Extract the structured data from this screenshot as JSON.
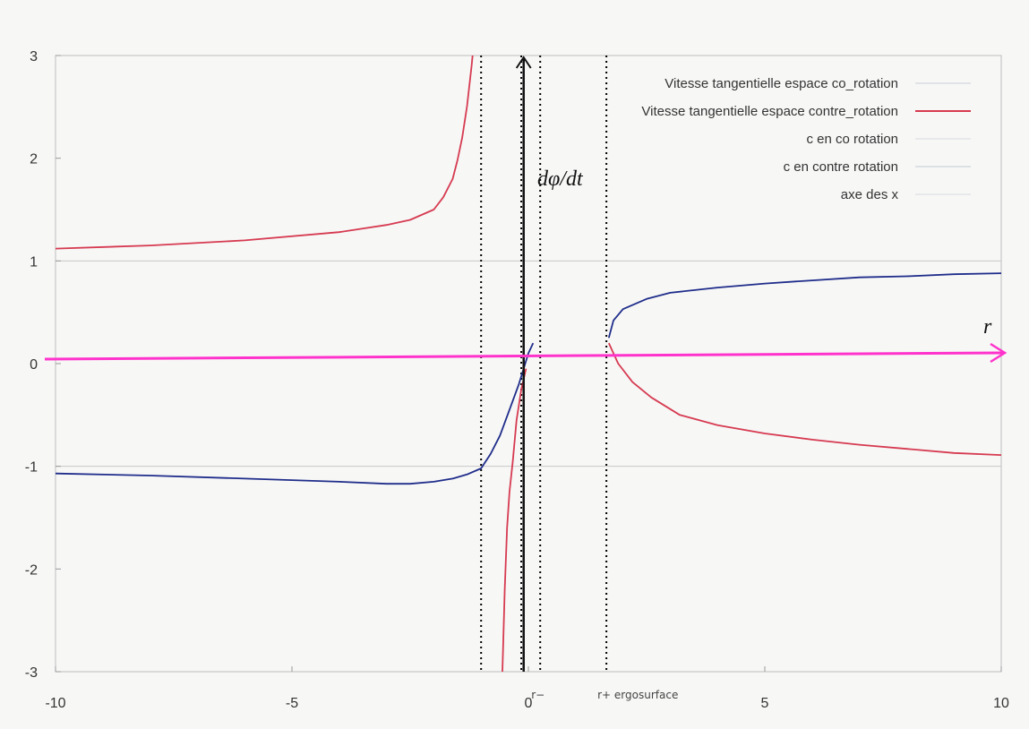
{
  "chart_data": {
    "type": "line",
    "xlim": [
      -10,
      10
    ],
    "ylim": [
      -3,
      3
    ],
    "x_ticks": [
      "-10",
      "-5",
      "0",
      "5",
      "10"
    ],
    "y_ticks": [
      "-3",
      "-2",
      "-1",
      "0",
      "1",
      "2",
      "3"
    ],
    "grid": "horizontal lines at y = -1 and y = 1",
    "legend_position": "top-right",
    "legend": [
      {
        "label": "Vitesse tangentielle espace co_rotation",
        "color": "#c9ced6"
      },
      {
        "label": "Vitesse tangentielle espace contre_rotation",
        "color": "#d63a50"
      },
      {
        "label": "c en co rotation",
        "color": "#d6d9de"
      },
      {
        "label": "c en contre rotation",
        "color": "#c2c8d0"
      },
      {
        "label": "axe des x",
        "color": "#d6d9de"
      }
    ],
    "series": [
      {
        "name": "Vitesse tangentielle espace contre_rotation",
        "color": "#d63a50",
        "segments": [
          [
            [
              -10,
              1.12
            ],
            [
              -8,
              1.15
            ],
            [
              -6,
              1.2
            ],
            [
              -4,
              1.28
            ],
            [
              -3,
              1.35
            ],
            [
              -2.5,
              1.4
            ],
            [
              -2,
              1.5
            ],
            [
              -1.8,
              1.62
            ],
            [
              -1.6,
              1.8
            ],
            [
              -1.5,
              1.98
            ],
            [
              -1.4,
              2.2
            ],
            [
              -1.3,
              2.5
            ],
            [
              -1.2,
              2.9
            ],
            [
              -1.18,
              3.0
            ]
          ],
          [
            [
              -0.55,
              -3.0
            ],
            [
              -0.5,
              -2.2
            ],
            [
              -0.45,
              -1.6
            ],
            [
              -0.4,
              -1.25
            ],
            [
              -0.33,
              -0.95
            ],
            [
              -0.25,
              -0.55
            ],
            [
              -0.15,
              -0.25
            ],
            [
              -0.05,
              -0.05
            ]
          ],
          [
            [
              1.7,
              0.2
            ],
            [
              1.9,
              0.0
            ],
            [
              2.2,
              -0.18
            ],
            [
              2.6,
              -0.33
            ],
            [
              3.2,
              -0.5
            ],
            [
              4,
              -0.6
            ],
            [
              5,
              -0.68
            ],
            [
              6,
              -0.74
            ],
            [
              7,
              -0.79
            ],
            [
              8,
              -0.83
            ],
            [
              9,
              -0.87
            ],
            [
              10,
              -0.89
            ]
          ]
        ]
      },
      {
        "name": "Vitesse tangentielle espace co_rotation",
        "color": "#1f2d8a",
        "segments": [
          [
            [
              -10,
              -1.07
            ],
            [
              -8,
              -1.09
            ],
            [
              -6,
              -1.12
            ],
            [
              -4,
              -1.15
            ],
            [
              -3,
              -1.17
            ],
            [
              -2.5,
              -1.17
            ],
            [
              -2,
              -1.15
            ],
            [
              -1.6,
              -1.12
            ],
            [
              -1.3,
              -1.08
            ],
            [
              -1,
              -1.02
            ],
            [
              -0.8,
              -0.88
            ],
            [
              -0.6,
              -0.7
            ],
            [
              -0.4,
              -0.45
            ],
            [
              -0.2,
              -0.2
            ],
            [
              -0.1,
              -0.05
            ],
            [
              0,
              0.1
            ],
            [
              0.1,
              0.2
            ]
          ],
          [
            [
              1.7,
              0.25
            ],
            [
              1.8,
              0.42
            ],
            [
              2,
              0.53
            ],
            [
              2.5,
              0.63
            ],
            [
              3,
              0.69
            ],
            [
              4,
              0.74
            ],
            [
              5,
              0.78
            ],
            [
              6,
              0.81
            ],
            [
              7,
              0.84
            ],
            [
              8,
              0.85
            ],
            [
              9,
              0.87
            ],
            [
              10,
              0.88
            ]
          ]
        ]
      }
    ],
    "axis_overlay": {
      "y_label": "dφ/dt",
      "x_label": "r",
      "x_axis_color": "#ff33cc",
      "y_axis_color": "#111111"
    },
    "vertical_markers": [
      {
        "x": -1.0,
        "label": ""
      },
      {
        "x": -0.15,
        "label": ""
      },
      {
        "x": 0.25,
        "label": "r−"
      },
      {
        "x": 1.65,
        "label": "r+ ergosurface"
      }
    ]
  }
}
